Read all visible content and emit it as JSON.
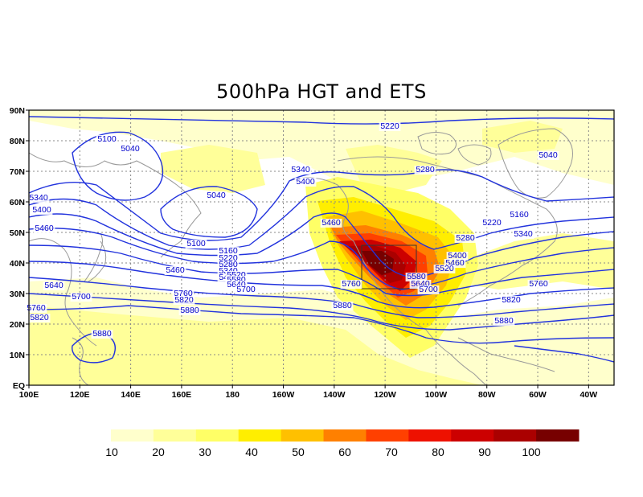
{
  "title": "500hPa HGT and ETS",
  "x_ticks": [
    "100E",
    "120E",
    "140E",
    "160E",
    "180",
    "160W",
    "140W",
    "120W",
    "100W",
    "80W",
    "60W",
    "40W"
  ],
  "y_ticks": [
    "EQ",
    "10N",
    "20N",
    "30N",
    "40N",
    "50N",
    "60N",
    "70N",
    "80N",
    "90N"
  ],
  "contour_labels": [
    {
      "text": "5100",
      "id": "c5100a"
    },
    {
      "text": "5040",
      "id": "c5040a"
    },
    {
      "text": "5220",
      "id": "c5220a"
    },
    {
      "text": "5040",
      "id": "c5040b"
    },
    {
      "text": "5340",
      "id": "c5340a"
    },
    {
      "text": "5280",
      "id": "c5280a"
    },
    {
      "text": "5400",
      "id": "c5400a"
    },
    {
      "text": "5040",
      "id": "c5040c"
    },
    {
      "text": "5340",
      "id": "c5340b"
    },
    {
      "text": "5400",
      "id": "c5400b"
    },
    {
      "text": "5460",
      "id": "c5460a"
    },
    {
      "text": "5160",
      "id": "c5160a"
    },
    {
      "text": "5220",
      "id": "c5220b"
    },
    {
      "text": "5280",
      "id": "c5280b"
    },
    {
      "text": "5340",
      "id": "c5340c"
    },
    {
      "text": "5460",
      "id": "c5460b"
    },
    {
      "text": "5100",
      "id": "c5100b"
    },
    {
      "text": "5160",
      "id": "c5160b"
    },
    {
      "text": "5220",
      "id": "c5220c"
    },
    {
      "text": "5280",
      "id": "c5280c"
    },
    {
      "text": "5340",
      "id": "c5340d"
    },
    {
      "text": "5400",
      "id": "c5400c"
    },
    {
      "text": "5460",
      "id": "c5460c"
    },
    {
      "text": "5400",
      "id": "c5400d"
    },
    {
      "text": "5460",
      "id": "c5460d"
    },
    {
      "text": "5520",
      "id": "c5520a"
    },
    {
      "text": "5580",
      "id": "c5580a"
    },
    {
      "text": "5640",
      "id": "c5640a"
    },
    {
      "text": "5700",
      "id": "c5700a"
    },
    {
      "text": "5760",
      "id": "c5760a"
    },
    {
      "text": "5640",
      "id": "c5640b"
    },
    {
      "text": "5700",
      "id": "c5700b"
    },
    {
      "text": "5760",
      "id": "c5760b"
    },
    {
      "text": "5820",
      "id": "c5820a"
    },
    {
      "text": "5880",
      "id": "c5880a"
    },
    {
      "text": "5760",
      "id": "c5760c"
    },
    {
      "text": "5820",
      "id": "c5820b"
    },
    {
      "text": "5880",
      "id": "c5880b"
    },
    {
      "text": "5760",
      "id": "c5760d"
    },
    {
      "text": "5820",
      "id": "c5820c"
    },
    {
      "text": "5880",
      "id": "c5880c"
    },
    {
      "text": "5700",
      "id": "c5700c"
    },
    {
      "text": "5640",
      "id": "c5640c"
    },
    {
      "text": "5580",
      "id": "c5580b"
    },
    {
      "text": "5520",
      "id": "c5520b"
    },
    {
      "text": "5580",
      "id": "c5580c"
    },
    {
      "text": "5640",
      "id": "c5640d"
    },
    {
      "text": "5700",
      "id": "c5700d"
    },
    {
      "text": "5880",
      "id": "c5880d"
    }
  ],
  "colorbar": {
    "levels": [
      "10",
      "20",
      "30",
      "40",
      "50",
      "60",
      "70",
      "80",
      "90",
      "100"
    ],
    "colors": [
      "#ffffcc",
      "#ffff99",
      "#ffff66",
      "#ffee00",
      "#ffc000",
      "#ff8000",
      "#ff4000",
      "#ee1100",
      "#cc0000",
      "#aa0000",
      "#770000"
    ]
  },
  "colors": {
    "contour": "#2233dd",
    "coast": "#999999",
    "grid": "#888888"
  }
}
